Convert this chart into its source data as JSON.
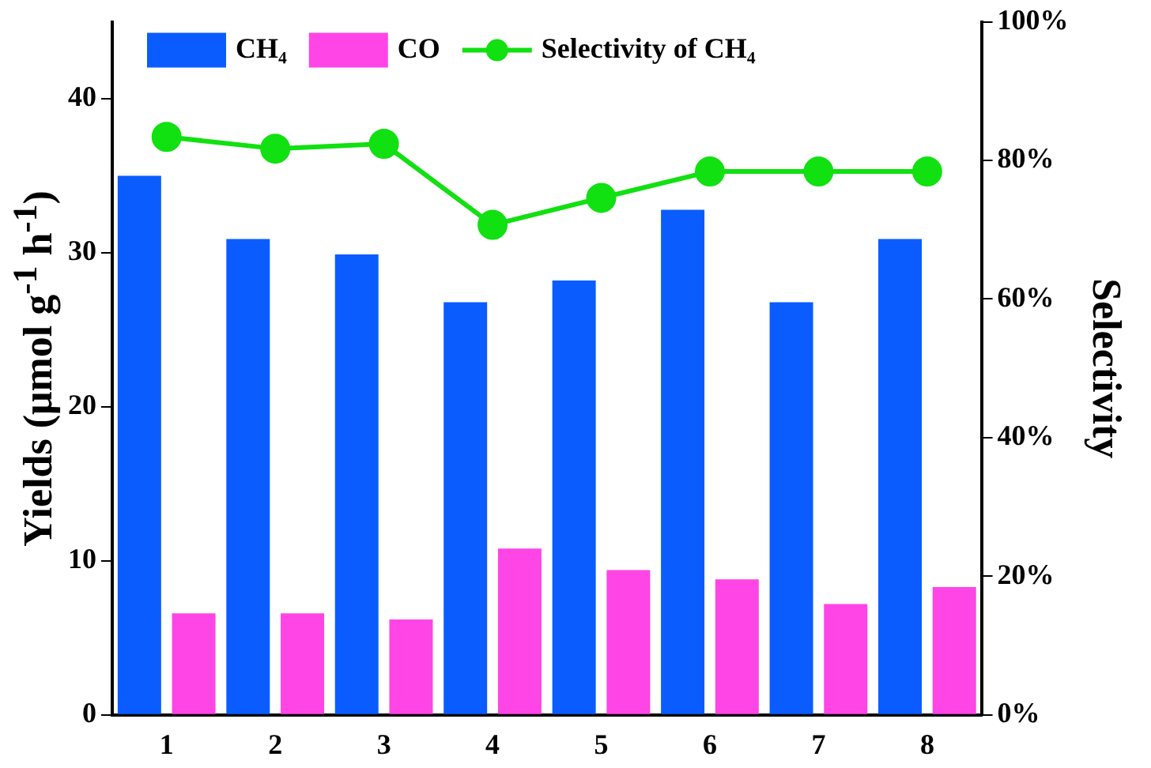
{
  "chart_data": {
    "type": "bar",
    "categories": [
      "1",
      "2",
      "3",
      "4",
      "5",
      "6",
      "7",
      "8"
    ],
    "ylabel": "Yields (μmol g$^{-1}$ h$^{-1}$)",
    "y2label": "Selectivity",
    "ylim": [
      0,
      45
    ],
    "yticks": [
      0,
      10,
      20,
      30,
      40
    ],
    "y2lim": [
      0,
      100
    ],
    "y2ticks": [
      {
        "value": 0,
        "label": "0%"
      },
      {
        "value": 20,
        "label": "20%"
      },
      {
        "value": 40,
        "label": "40%"
      },
      {
        "value": 60,
        "label": "60%"
      },
      {
        "value": 80,
        "label": "80%"
      },
      {
        "value": 100,
        "label": "100%"
      }
    ],
    "series": [
      {
        "name": "CH₄",
        "color": "#0a5cff",
        "values": [
          35.0,
          30.9,
          29.9,
          26.8,
          28.2,
          32.8,
          26.8,
          30.9
        ]
      },
      {
        "name": "CO",
        "color": "#ff45e6",
        "values": [
          6.6,
          6.6,
          6.2,
          10.8,
          9.4,
          8.8,
          7.2,
          8.3
        ]
      },
      {
        "name": "Selectivity of CH₄",
        "type": "line",
        "axis": "y2",
        "color": "#11e011",
        "marker": "circle",
        "values": [
          83.4,
          81.7,
          82.4,
          70.7,
          74.6,
          78.4,
          78.4,
          78.4
        ]
      }
    ],
    "legend": "top",
    "grid": false
  }
}
